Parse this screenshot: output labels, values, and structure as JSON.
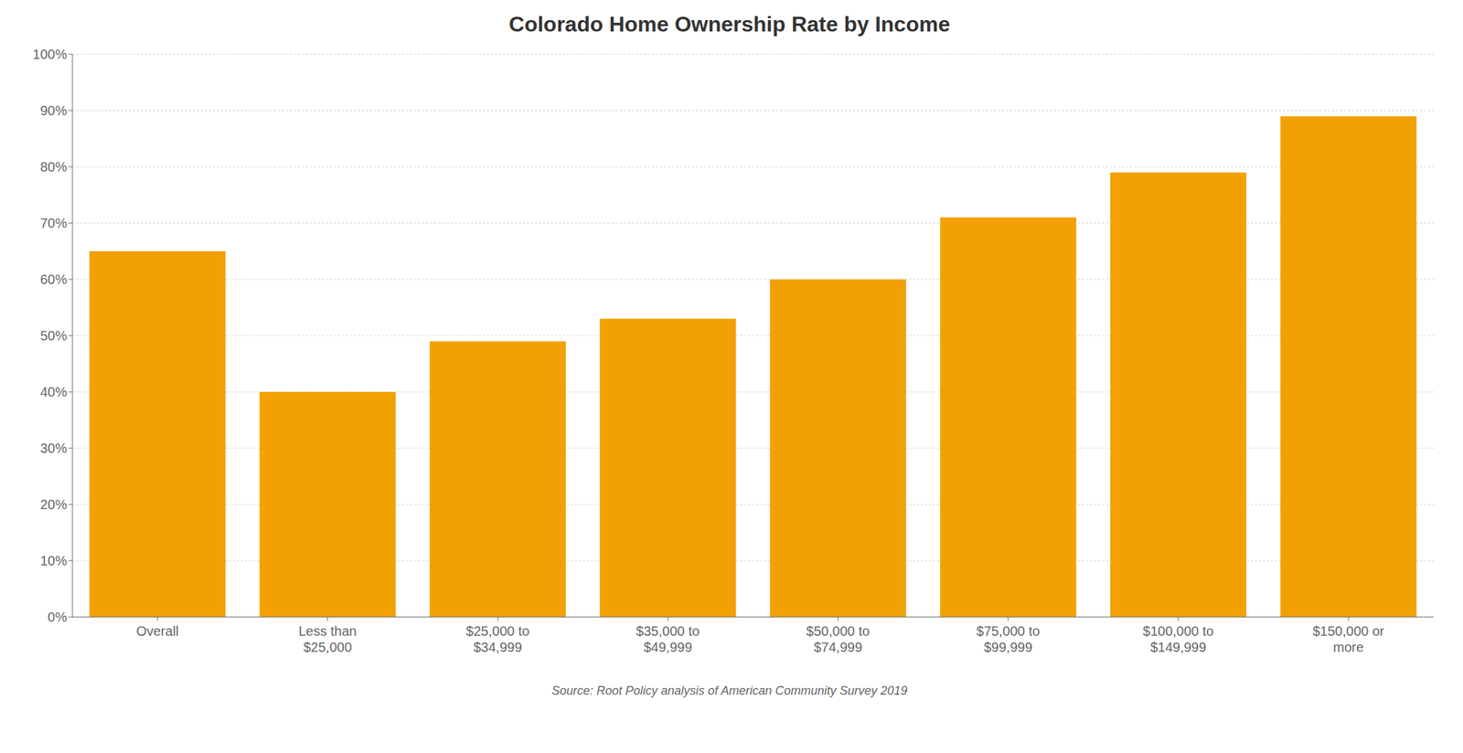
{
  "chart_data": {
    "type": "bar",
    "title": "Colorado Home Ownership Rate by Income",
    "categories": [
      "Overall",
      "Less than\n$25,000",
      "$25,000 to\n$34,999",
      "$35,000 to\n$49,999",
      "$50,000 to\n$74,999",
      "$75,000 to\n$99,999",
      "$100,000 to\n$149,999",
      "$150,000 or\nmore"
    ],
    "values": [
      0.65,
      0.4,
      0.49,
      0.53,
      0.6,
      0.71,
      0.79,
      0.89
    ],
    "color": "#F2A105",
    "ylim": [
      0,
      1.0
    ],
    "yticks": [
      {
        "value": 0.0,
        "label": "0%"
      },
      {
        "value": 0.1,
        "label": "10%"
      },
      {
        "value": 0.2,
        "label": "20%"
      },
      {
        "value": 0.3,
        "label": "30%"
      },
      {
        "value": 0.4,
        "label": "40%"
      },
      {
        "value": 0.5,
        "label": "50%"
      },
      {
        "value": 0.6,
        "label": "60%"
      },
      {
        "value": 0.7,
        "label": "70%"
      },
      {
        "value": 0.8,
        "label": "80%"
      },
      {
        "value": 0.9,
        "label": "90%"
      },
      {
        "value": 1.0,
        "label": "100%"
      }
    ],
    "grid": true,
    "annotations": [
      "Source: Root Policy analysis of American Community Survey 2019"
    ]
  }
}
